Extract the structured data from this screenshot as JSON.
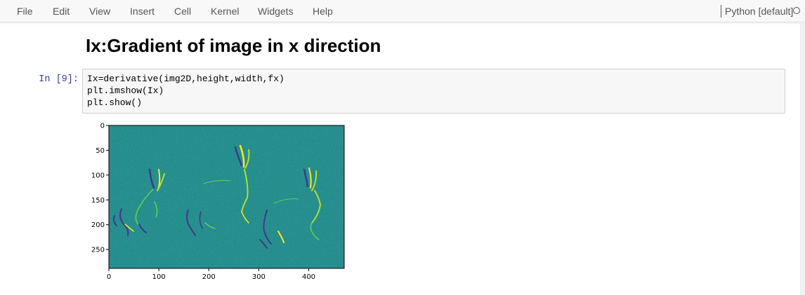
{
  "menubar": {
    "items": [
      "File",
      "Edit",
      "View",
      "Insert",
      "Cell",
      "Kernel",
      "Widgets",
      "Help"
    ],
    "kernel_name": "Python [default]"
  },
  "notebook": {
    "heading": "Ix:Gradient of image in x direction",
    "cell_prompt": "In [9]:",
    "code_lines": [
      "Ix=derivative(img2D,height,width,fx)",
      "plt.imshow(Ix)",
      "plt.show()"
    ]
  },
  "output_image": {
    "description_colormap": "viridis",
    "background_color": "#238c8b",
    "x_ticks": [
      "0",
      "100",
      "200",
      "300",
      "400"
    ],
    "y_ticks": [
      "0",
      "50",
      "100",
      "150",
      "200",
      "250"
    ],
    "x_range": [
      0,
      471
    ],
    "y_range": [
      0,
      288
    ]
  }
}
